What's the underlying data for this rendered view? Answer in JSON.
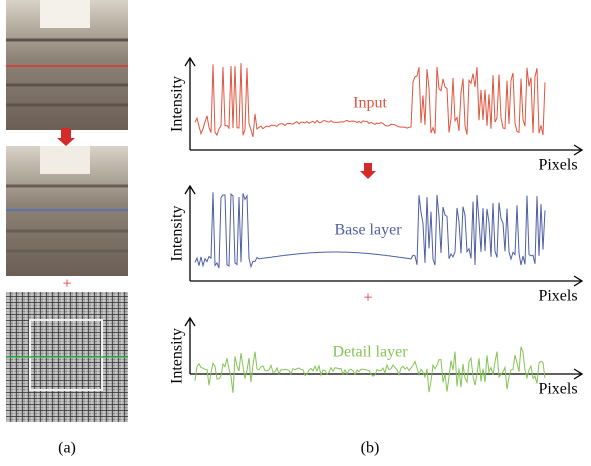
{
  "panel_a": {
    "plus": "+",
    "caption": "(a)"
  },
  "panel_b": {
    "plots": [
      {
        "y_label": "Intensity",
        "x_label": "Pixels",
        "signal_label": "Input"
      },
      {
        "y_label": "Intensity",
        "x_label": "Pixels",
        "signal_label": "Base layer"
      },
      {
        "y_label": "Intensity",
        "x_label": "Pixels",
        "signal_label": "Detail layer"
      }
    ],
    "plus": "+",
    "caption": "(b)"
  }
}
